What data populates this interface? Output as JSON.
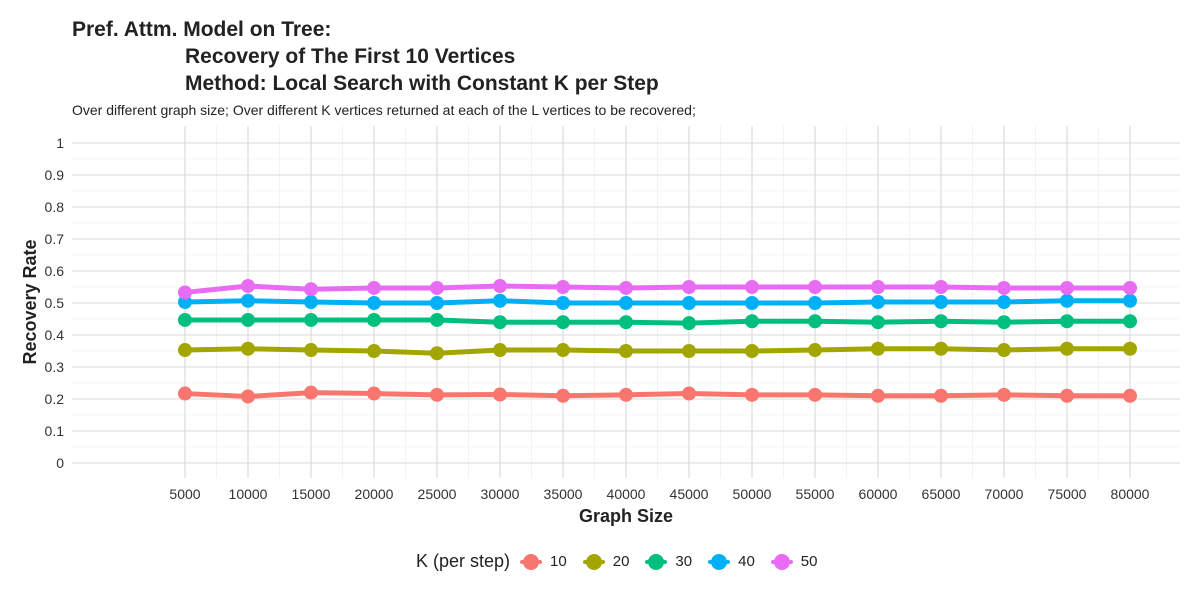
{
  "title_lines": [
    "Pref. Attm. Model on Tree:",
    "Recovery of The First 10 Vertices",
    "Method: Local Search with Constant K per Step"
  ],
  "subtitle": "Over different graph size; Over different K vertices returned at each of the L vertices to be recovered;",
  "legend": {
    "title": "K (per step)",
    "position": "bottom"
  },
  "chart_data": {
    "type": "line",
    "title": "Pref. Attm. Model on Tree: Recovery of The First 10 Vertices Method: Local Search with Constant K per Step",
    "subtitle": "Over different graph size; Over different K vertices returned at each of the L vertices to be recovered;",
    "xlabel": "Graph Size",
    "ylabel": "Recovery Rate",
    "x": [
      5000,
      10000,
      15000,
      20000,
      25000,
      30000,
      35000,
      40000,
      45000,
      50000,
      55000,
      60000,
      65000,
      70000,
      75000,
      80000
    ],
    "x_tick_labels": [
      "5000",
      "10000",
      "15000",
      "20000",
      "25000",
      "30000",
      "35000",
      "40000",
      "45000",
      "50000",
      "55000",
      "60000",
      "65000",
      "70000",
      "75000",
      "80000"
    ],
    "ylim": [
      0,
      1
    ],
    "y_ticks": [
      0,
      0.1,
      0.2,
      0.3,
      0.4,
      0.5,
      0.6,
      0.7,
      0.8,
      0.9,
      1
    ],
    "y_tick_labels": [
      "0",
      "0.1",
      "0.2",
      "0.3",
      "0.4",
      "0.5",
      "0.6",
      "0.7",
      "0.8",
      "0.9",
      "1"
    ],
    "grid": true,
    "legend_title": "K (per step)",
    "legend_position": "bottom",
    "series": [
      {
        "name": "10",
        "color": "#F8766D",
        "values": [
          0.217,
          0.208,
          0.22,
          0.217,
          0.213,
          0.214,
          0.21,
          0.213,
          0.217,
          0.213,
          0.213,
          0.21,
          0.21,
          0.213,
          0.21,
          0.21
        ]
      },
      {
        "name": "20",
        "color": "#A3A500",
        "values": [
          0.353,
          0.357,
          0.353,
          0.35,
          0.343,
          0.353,
          0.353,
          0.35,
          0.35,
          0.35,
          0.353,
          0.357,
          0.357,
          0.353,
          0.357,
          0.357
        ]
      },
      {
        "name": "30",
        "color": "#00BF7D",
        "values": [
          0.447,
          0.447,
          0.447,
          0.447,
          0.447,
          0.44,
          0.44,
          0.44,
          0.437,
          0.443,
          0.443,
          0.44,
          0.443,
          0.44,
          0.443,
          0.443
        ]
      },
      {
        "name": "40",
        "color": "#00B0F6",
        "values": [
          0.503,
          0.507,
          0.503,
          0.5,
          0.5,
          0.507,
          0.5,
          0.5,
          0.5,
          0.5,
          0.5,
          0.503,
          0.503,
          0.503,
          0.507,
          0.507
        ]
      },
      {
        "name": "50",
        "color": "#E76BF3",
        "values": [
          0.533,
          0.553,
          0.543,
          0.547,
          0.547,
          0.553,
          0.55,
          0.547,
          0.55,
          0.55,
          0.55,
          0.55,
          0.55,
          0.547,
          0.547,
          0.547
        ]
      }
    ]
  }
}
